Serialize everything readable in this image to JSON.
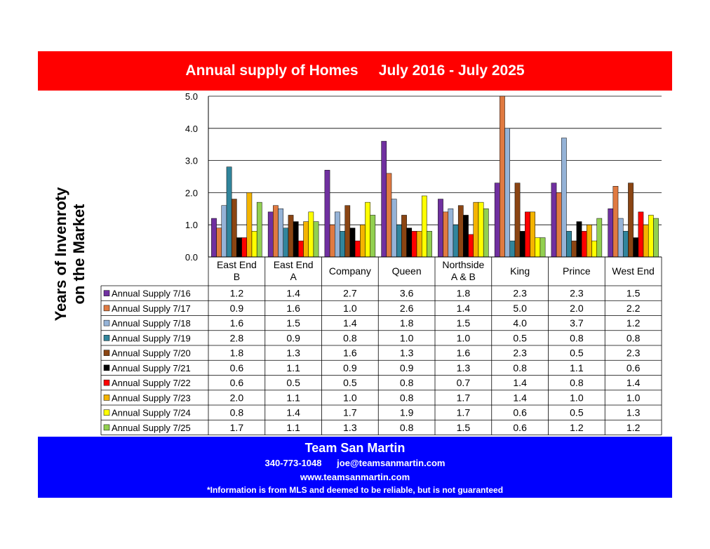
{
  "title": "Annual supply of Homes     July 2016 - July 2025",
  "ylabel_line1": "Years of Invenroty",
  "ylabel_line2": "on the Market",
  "footer": {
    "name": "Team San Martin",
    "phone": "340-773-1048",
    "email": "joe@teamsanmartin.com",
    "website": "www.teamsanmartin.com",
    "disclaimer": "*Information is from MLS and deemed to be reliable, but is not guaranteed"
  },
  "colors": {
    "title_bg": "#ff0000",
    "footer_bg": "#0000ff"
  },
  "chart_data": {
    "type": "bar",
    "ylim": [
      0,
      5
    ],
    "yticks": [
      "0.0",
      "1.0",
      "2.0",
      "3.0",
      "4.0",
      "5.0"
    ],
    "grid": true,
    "categories": [
      [
        "East End",
        "B"
      ],
      [
        "East End",
        "A"
      ],
      [
        "Company"
      ],
      [
        "Queen"
      ],
      [
        "Northside",
        "A & B"
      ],
      [
        "King"
      ],
      [
        "Prince"
      ],
      [
        "West End"
      ]
    ],
    "series": [
      {
        "name": "Annual Supply 7/16",
        "color": "#7030a0",
        "values": [
          1.2,
          1.4,
          2.7,
          3.6,
          1.8,
          2.3,
          2.3,
          1.5
        ]
      },
      {
        "name": "Annual Supply 7/17",
        "color": "#e07a41",
        "values": [
          0.9,
          1.6,
          1.0,
          2.6,
          1.4,
          5.0,
          2.0,
          2.2
        ]
      },
      {
        "name": "Annual Supply 7/18",
        "color": "#95b3d7",
        "values": [
          1.6,
          1.5,
          1.4,
          1.8,
          1.5,
          4.0,
          3.7,
          1.2
        ]
      },
      {
        "name": "Annual Supply 7/19",
        "color": "#31859c",
        "values": [
          2.8,
          0.9,
          0.8,
          1.0,
          1.0,
          0.5,
          0.8,
          0.8
        ]
      },
      {
        "name": "Annual Supply 7/20",
        "color": "#8b4513",
        "values": [
          1.8,
          1.3,
          1.6,
          1.3,
          1.6,
          2.3,
          0.5,
          2.3
        ]
      },
      {
        "name": "Annual Supply 7/21",
        "color": "#000000",
        "values": [
          0.6,
          1.1,
          0.9,
          0.9,
          1.3,
          0.8,
          1.1,
          0.6
        ]
      },
      {
        "name": "Annual Supply 7/22",
        "color": "#ff0000",
        "values": [
          0.6,
          0.5,
          0.5,
          0.8,
          0.7,
          1.4,
          0.8,
          1.4
        ]
      },
      {
        "name": "Annual Supply 7/23",
        "color": "#f4b400",
        "values": [
          2.0,
          1.1,
          1.0,
          0.8,
          1.7,
          1.4,
          1.0,
          1.0
        ]
      },
      {
        "name": "Annual Supply 7/24",
        "color": "#ffff00",
        "values": [
          0.8,
          1.4,
          1.7,
          1.9,
          1.7,
          0.6,
          0.5,
          1.3
        ]
      },
      {
        "name": "Annual Supply 7/25",
        "color": "#92d050",
        "values": [
          1.7,
          1.1,
          1.3,
          0.8,
          1.5,
          0.6,
          1.2,
          1.2
        ]
      }
    ]
  }
}
